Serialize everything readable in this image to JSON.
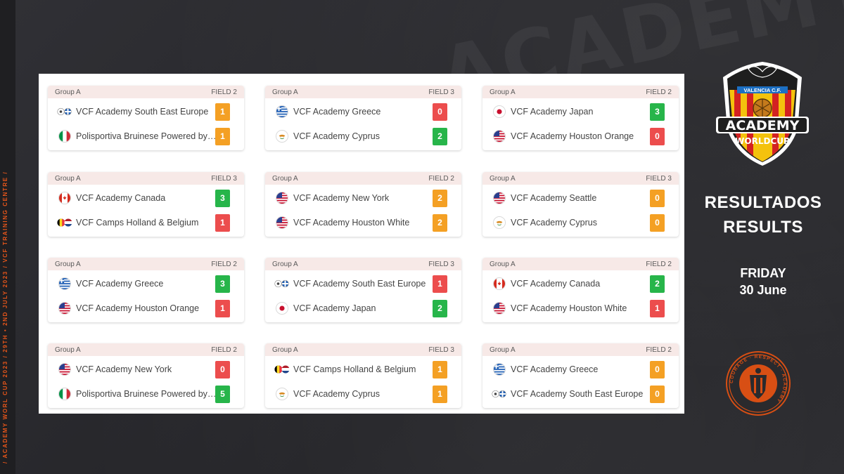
{
  "colors": {
    "orange": "#f4a024",
    "green": "#27b54a",
    "red": "#ec4d4d",
    "accent": "#e8561a",
    "background": "#2b2b2f"
  },
  "side_text": "/ ACADEMY WORL CUP 2023 / 29TH • 2ND JULY 2023 / VCF TRAINING CENTRE /",
  "background_text": "ACADEMY",
  "logo": {
    "top_text": "VALENCIA C.F.",
    "line1": "ACADEMY",
    "line2": "WORLDCUP"
  },
  "badge": {
    "ring_text": "COURAGE · RESPECT · ACADEMY"
  },
  "header": {
    "title_es": "RESULTADOS",
    "title_en": "RESULTS",
    "day": "FRIDAY",
    "date": "30 June"
  },
  "matches": [
    {
      "group": "Group A",
      "field": "FIELD 2",
      "home": {
        "team": "VCF Academy South East Europe",
        "flag": "see",
        "score": "1",
        "status": "orange"
      },
      "away": {
        "team": "Polisportiva Bruinese Powered by VCF",
        "flag": "italy",
        "score": "1",
        "status": "orange"
      }
    },
    {
      "group": "Group A",
      "field": "FIELD 3",
      "home": {
        "team": "VCF Academy Greece",
        "flag": "greece",
        "score": "0",
        "status": "red"
      },
      "away": {
        "team": "VCF Academy Cyprus",
        "flag": "cyprus",
        "score": "2",
        "status": "green"
      }
    },
    {
      "group": "Group A",
      "field": "FIELD 2",
      "home": {
        "team": "VCF Academy Japan",
        "flag": "japan",
        "score": "3",
        "status": "green"
      },
      "away": {
        "team": "VCF Academy Houston Orange",
        "flag": "usa",
        "score": "0",
        "status": "red"
      }
    },
    {
      "group": "Group A",
      "field": "FIELD 3",
      "home": {
        "team": "VCF Academy Canada",
        "flag": "canada",
        "score": "3",
        "status": "green"
      },
      "away": {
        "team": "VCF Camps Holland & Belgium",
        "flag": "be-nl",
        "score": "1",
        "status": "red"
      }
    },
    {
      "group": "Group A",
      "field": "FIELD 2",
      "home": {
        "team": "VCF Academy New York",
        "flag": "usa",
        "score": "2",
        "status": "orange"
      },
      "away": {
        "team": "VCF Academy Houston White",
        "flag": "usa",
        "score": "2",
        "status": "orange"
      }
    },
    {
      "group": "Group A",
      "field": "FIELD 3",
      "home": {
        "team": "VCF Academy Seattle",
        "flag": "usa",
        "score": "0",
        "status": "orange"
      },
      "away": {
        "team": "VCF Academy Cyprus",
        "flag": "cyprus",
        "score": "0",
        "status": "orange"
      }
    },
    {
      "group": "Group A",
      "field": "FIELD 2",
      "home": {
        "team": "VCF Academy Greece",
        "flag": "greece",
        "score": "3",
        "status": "green"
      },
      "away": {
        "team": "VCF Academy Houston Orange",
        "flag": "usa",
        "score": "1",
        "status": "red"
      }
    },
    {
      "group": "Group A",
      "field": "FIELD 3",
      "home": {
        "team": "VCF Academy South East Europe",
        "flag": "see",
        "score": "1",
        "status": "red"
      },
      "away": {
        "team": "VCF Academy Japan",
        "flag": "japan",
        "score": "2",
        "status": "green"
      }
    },
    {
      "group": "Group A",
      "field": "FIELD 2",
      "home": {
        "team": "VCF Academy Canada",
        "flag": "canada",
        "score": "2",
        "status": "green"
      },
      "away": {
        "team": "VCF Academy Houston White",
        "flag": "usa",
        "score": "1",
        "status": "red"
      }
    },
    {
      "group": "Group A",
      "field": "FIELD 2",
      "home": {
        "team": "VCF Academy New York",
        "flag": "usa",
        "score": "0",
        "status": "red"
      },
      "away": {
        "team": "Polisportiva Bruinese Powered by VCF",
        "flag": "italy",
        "score": "5",
        "status": "green"
      }
    },
    {
      "group": "Group A",
      "field": "FIELD 3",
      "home": {
        "team": "VCF Camps Holland & Belgium",
        "flag": "be-nl",
        "score": "1",
        "status": "orange"
      },
      "away": {
        "team": "VCF Academy Cyprus",
        "flag": "cyprus",
        "score": "1",
        "status": "orange"
      }
    },
    {
      "group": "Group A",
      "field": "FIELD 2",
      "home": {
        "team": "VCF Academy Greece",
        "flag": "greece",
        "score": "0",
        "status": "orange"
      },
      "away": {
        "team": "VCF Academy South East Europe",
        "flag": "see",
        "score": "0",
        "status": "orange"
      }
    }
  ]
}
